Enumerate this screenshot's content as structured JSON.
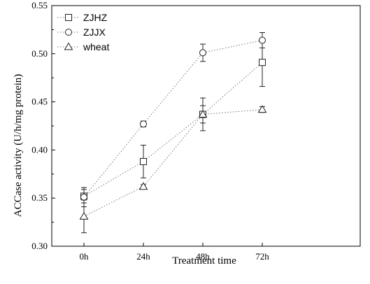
{
  "chart_data": {
    "type": "line",
    "categories": [
      "0h",
      "24h",
      "48h",
      "72h"
    ],
    "xlabel": "Treatment time",
    "ylabel": "ACCase activity (U/h/mg protein)",
    "ylim": [
      0.3,
      0.55
    ],
    "yticks": [
      0.3,
      0.35,
      0.4,
      0.45,
      0.5,
      0.55
    ],
    "grid": false,
    "legend": "top-left",
    "series": [
      {
        "name": "ZJHZ",
        "marker": "square",
        "color": "#777777",
        "values": [
          0.352,
          0.388,
          0.437,
          0.491
        ],
        "errors": [
          0.007,
          0.017,
          0.017,
          0.025
        ]
      },
      {
        "name": "ZJJX",
        "marker": "circle",
        "color": "#777777",
        "values": [
          0.351,
          0.427,
          0.501,
          0.514
        ],
        "errors": [
          0.01,
          0.003,
          0.009,
          0.008
        ]
      },
      {
        "name": "wheat",
        "marker": "triangle",
        "color": "#777777",
        "values": [
          0.331,
          0.362,
          0.437,
          0.442
        ],
        "errors": [
          0.017,
          0.002,
          0.009,
          0.003
        ]
      }
    ]
  }
}
